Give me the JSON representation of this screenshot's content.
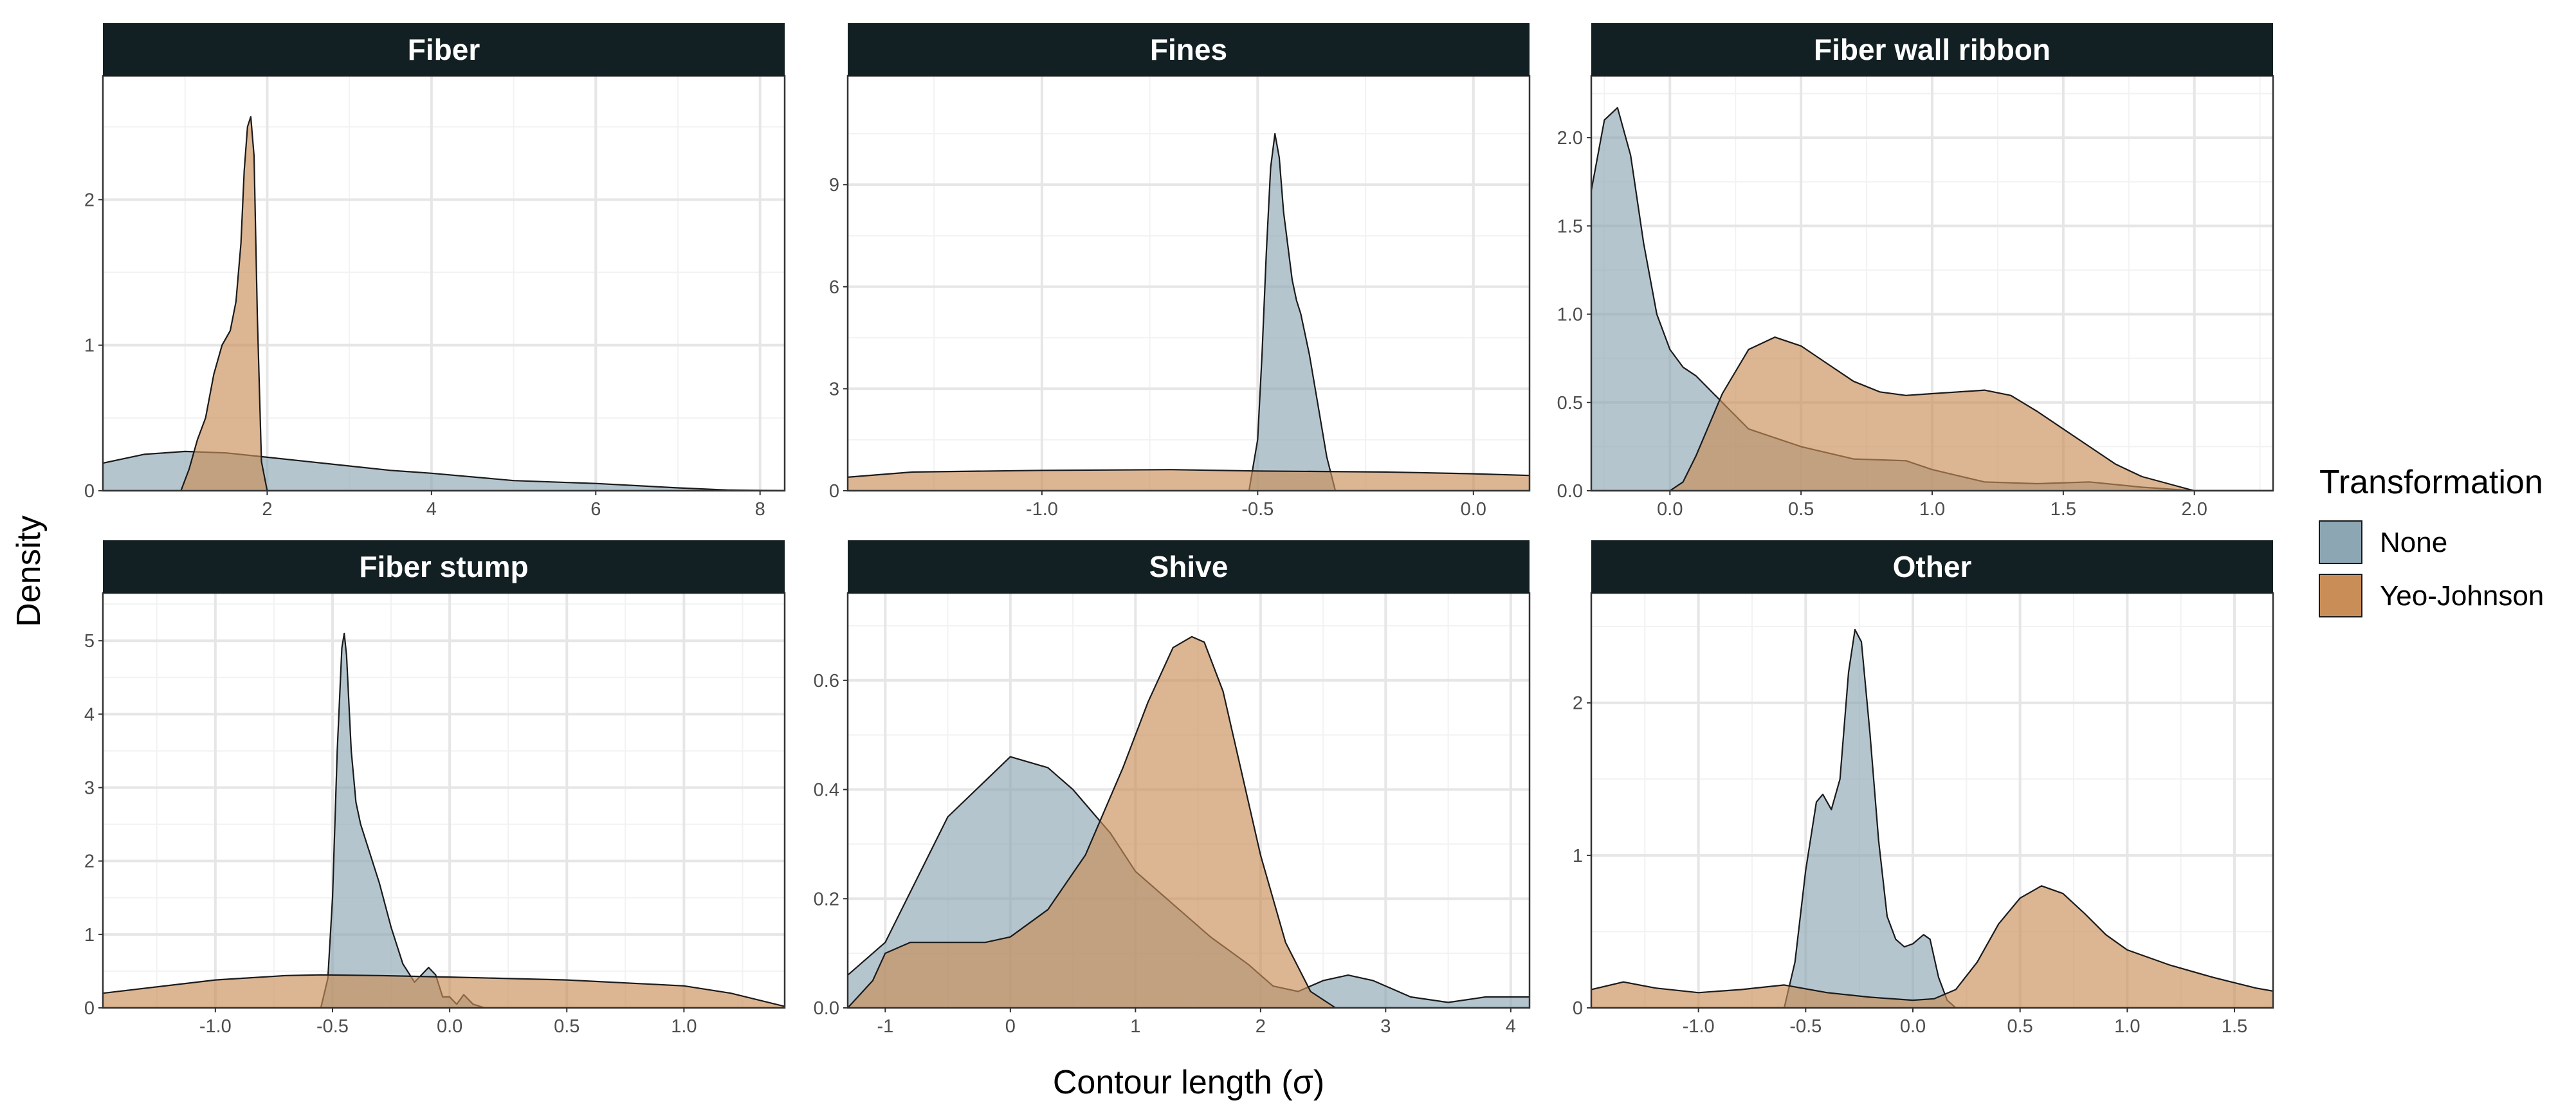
{
  "chart_data": {
    "type": "area",
    "title": "",
    "xlabel": "Contour length (σ)",
    "ylabel": "Density",
    "legend": {
      "title": "Transformation",
      "position": "right",
      "entries": [
        {
          "name": "None",
          "color": "#8CA6B4"
        },
        {
          "name": "Yeo-Johnson",
          "color": "#C98E58"
        }
      ]
    },
    "colors": {
      "None": "#8CA6B4",
      "Yeo-Johnson": "#C98E58",
      "strip": "#132023",
      "grid": "#ebebeb",
      "border": "#333333"
    },
    "panels": [
      {
        "title": "Fiber",
        "xlim": [
          0,
          8.3
        ],
        "ylim": [
          0,
          2.85
        ],
        "xticks": [
          2,
          4,
          6,
          8
        ],
        "xtick_labels": [
          "2",
          "4",
          "6",
          "8"
        ],
        "yticks": [
          0,
          1,
          2
        ],
        "ytick_labels": [
          "0",
          "1",
          "2"
        ],
        "series": [
          {
            "name": "None",
            "x": [
              0,
              0.5,
              1,
              1.5,
              2,
              2.5,
              3,
              3.5,
              4,
              5,
              6,
              7,
              7.6,
              8.3
            ],
            "y": [
              0.19,
              0.25,
              0.27,
              0.26,
              0.23,
              0.2,
              0.17,
              0.14,
              0.12,
              0.07,
              0.05,
              0.02,
              0.005,
              0
            ]
          },
          {
            "name": "Yeo-Johnson",
            "x": [
              0,
              0.95,
              1.05,
              1.15,
              1.25,
              1.35,
              1.45,
              1.55,
              1.62,
              1.68,
              1.72,
              1.76,
              1.8,
              1.84,
              1.88,
              1.93,
              2.0,
              8.3
            ],
            "y": [
              0,
              0,
              0.15,
              0.35,
              0.5,
              0.8,
              1.0,
              1.1,
              1.3,
              1.7,
              2.2,
              2.5,
              2.57,
              2.3,
              1.2,
              0.2,
              0,
              0
            ]
          }
        ]
      },
      {
        "title": "Fines",
        "xlim": [
          -1.45,
          0.13
        ],
        "ylim": [
          0,
          12.2
        ],
        "xticks": [
          -1.0,
          -0.5,
          0.0
        ],
        "xtick_labels": [
          "-1.0",
          "-0.5",
          "0.0"
        ],
        "yticks": [
          0,
          3,
          6,
          9
        ],
        "ytick_labels": [
          "0",
          "3",
          "6",
          "9"
        ],
        "series": [
          {
            "name": "None",
            "x": [
              -1.45,
              -0.52,
              -0.5,
              -0.49,
              -0.48,
              -0.47,
              -0.46,
              -0.45,
              -0.44,
              -0.43,
              -0.42,
              -0.41,
              -0.4,
              -0.38,
              -0.36,
              -0.34,
              -0.32,
              0.13
            ],
            "y": [
              0,
              0,
              1.5,
              4,
              7,
              9.5,
              10.5,
              9.8,
              8.2,
              7.2,
              6.2,
              5.6,
              5.2,
              4.0,
              2.5,
              1.0,
              0,
              0
            ]
          },
          {
            "name": "Yeo-Johnson",
            "x": [
              -1.45,
              -1.3,
              -1.0,
              -0.7,
              -0.5,
              -0.2,
              0.0,
              0.13
            ],
            "y": [
              0.4,
              0.55,
              0.6,
              0.62,
              0.58,
              0.55,
              0.5,
              0.45
            ]
          }
        ]
      },
      {
        "title": "Fiber wall ribbon",
        "xlim": [
          -0.3,
          2.3
        ],
        "ylim": [
          0,
          2.35
        ],
        "xticks": [
          0.0,
          0.5,
          1.0,
          1.5,
          2.0
        ],
        "xtick_labels": [
          "0.0",
          "0.5",
          "1.0",
          "1.5",
          "2.0"
        ],
        "yticks": [
          0.0,
          0.5,
          1.0,
          1.5,
          2.0
        ],
        "ytick_labels": [
          "0.0",
          "0.5",
          "1.0",
          "1.5",
          "2.0"
        ],
        "series": [
          {
            "name": "None",
            "x": [
              -0.3,
              -0.25,
              -0.2,
              -0.15,
              -0.1,
              -0.05,
              0.0,
              0.05,
              0.1,
              0.2,
              0.3,
              0.5,
              0.7,
              0.9,
              1.0,
              1.2,
              1.4,
              1.6,
              1.8,
              2.0,
              2.3
            ],
            "y": [
              1.7,
              2.1,
              2.17,
              1.9,
              1.4,
              1.0,
              0.8,
              0.7,
              0.65,
              0.5,
              0.35,
              0.25,
              0.18,
              0.17,
              0.12,
              0.05,
              0.04,
              0.05,
              0.02,
              0,
              0
            ]
          },
          {
            "name": "Yeo-Johnson",
            "x": [
              -0.3,
              0.0,
              0.05,
              0.1,
              0.2,
              0.3,
              0.4,
              0.5,
              0.6,
              0.7,
              0.8,
              0.9,
              1.0,
              1.1,
              1.2,
              1.3,
              1.4,
              1.5,
              1.6,
              1.7,
              1.8,
              1.9,
              2.0,
              2.3
            ],
            "y": [
              0,
              0,
              0.05,
              0.2,
              0.55,
              0.8,
              0.87,
              0.82,
              0.72,
              0.62,
              0.56,
              0.54,
              0.55,
              0.56,
              0.57,
              0.54,
              0.45,
              0.35,
              0.25,
              0.15,
              0.08,
              0.04,
              0,
              0
            ]
          }
        ]
      },
      {
        "title": "Fiber stump",
        "xlim": [
          -1.48,
          1.43
        ],
        "ylim": [
          0,
          5.65
        ],
        "xticks": [
          -1.0,
          -0.5,
          0.0,
          0.5,
          1.0
        ],
        "xtick_labels": [
          "-1.0",
          "-0.5",
          "0.0",
          "0.5",
          "1.0"
        ],
        "yticks": [
          0,
          1,
          2,
          3,
          4,
          5
        ],
        "ytick_labels": [
          "0",
          "1",
          "2",
          "3",
          "4",
          "5"
        ],
        "series": [
          {
            "name": "None",
            "x": [
              -1.48,
              -0.55,
              -0.52,
              -0.5,
              -0.48,
              -0.46,
              -0.45,
              -0.44,
              -0.42,
              -0.4,
              -0.38,
              -0.35,
              -0.3,
              -0.25,
              -0.2,
              -0.15,
              -0.12,
              -0.09,
              -0.06,
              -0.03,
              0.0,
              0.03,
              0.06,
              0.1,
              0.15,
              1.43
            ],
            "y": [
              0,
              0,
              0.4,
              1.5,
              3.5,
              4.9,
              5.1,
              4.8,
              3.5,
              2.8,
              2.5,
              2.2,
              1.7,
              1.1,
              0.6,
              0.35,
              0.45,
              0.55,
              0.45,
              0.15,
              0.15,
              0.05,
              0.18,
              0.05,
              0,
              0
            ]
          },
          {
            "name": "Yeo-Johnson",
            "x": [
              -1.48,
              -1.0,
              -0.7,
              -0.55,
              -0.3,
              0.0,
              0.5,
              1.0,
              1.2,
              1.43
            ],
            "y": [
              0.2,
              0.38,
              0.44,
              0.45,
              0.44,
              0.42,
              0.38,
              0.3,
              0.2,
              0.02
            ]
          }
        ]
      },
      {
        "title": "Shive",
        "xlim": [
          -1.3,
          4.15
        ],
        "ylim": [
          0,
          0.76
        ],
        "xticks": [
          -1,
          0,
          1,
          2,
          3,
          4
        ],
        "xtick_labels": [
          "-1",
          "0",
          "1",
          "2",
          "3",
          "4"
        ],
        "yticks": [
          0.0,
          0.2,
          0.4,
          0.6
        ],
        "ytick_labels": [
          "0.0",
          "0.2",
          "0.4",
          "0.6"
        ],
        "series": [
          {
            "name": "None",
            "x": [
              -1.3,
              -1.0,
              -0.5,
              0.0,
              0.3,
              0.5,
              0.8,
              1.0,
              1.3,
              1.6,
              1.9,
              2.1,
              2.3,
              2.5,
              2.7,
              2.9,
              3.2,
              3.5,
              3.8,
              4.15
            ],
            "y": [
              0.06,
              0.12,
              0.35,
              0.46,
              0.44,
              0.4,
              0.32,
              0.25,
              0.19,
              0.13,
              0.08,
              0.04,
              0.03,
              0.05,
              0.06,
              0.05,
              0.02,
              0.01,
              0.02,
              0.02
            ]
          },
          {
            "name": "Yeo-Johnson",
            "x": [
              -1.3,
              -1.1,
              -1.0,
              -0.8,
              -0.5,
              -0.2,
              0.0,
              0.3,
              0.6,
              0.9,
              1.1,
              1.3,
              1.45,
              1.55,
              1.7,
              1.85,
              2.0,
              2.2,
              2.4,
              2.6,
              4.15
            ],
            "y": [
              0,
              0.05,
              0.1,
              0.12,
              0.12,
              0.12,
              0.13,
              0.18,
              0.28,
              0.44,
              0.56,
              0.66,
              0.68,
              0.67,
              0.58,
              0.43,
              0.28,
              0.12,
              0.03,
              0,
              0
            ]
          }
        ]
      },
      {
        "title": "Other",
        "xlim": [
          -1.5,
          1.68
        ],
        "ylim": [
          0,
          2.72
        ],
        "xticks": [
          -1.0,
          -0.5,
          0.0,
          0.5,
          1.0,
          1.5
        ],
        "xtick_labels": [
          "-1.0",
          "-0.5",
          "0.0",
          "0.5",
          "1.0",
          "1.5"
        ],
        "yticks": [
          0,
          1,
          2
        ],
        "ytick_labels": [
          "0",
          "1",
          "2"
        ],
        "series": [
          {
            "name": "None",
            "x": [
              -1.5,
              -0.6,
              -0.55,
              -0.5,
              -0.45,
              -0.42,
              -0.38,
              -0.34,
              -0.3,
              -0.27,
              -0.24,
              -0.2,
              -0.16,
              -0.12,
              -0.08,
              -0.04,
              0.0,
              0.05,
              0.08,
              0.12,
              0.16,
              0.2,
              1.68
            ],
            "y": [
              0,
              0,
              0.3,
              0.9,
              1.35,
              1.4,
              1.3,
              1.5,
              2.2,
              2.48,
              2.4,
              1.8,
              1.1,
              0.6,
              0.45,
              0.4,
              0.42,
              0.48,
              0.45,
              0.2,
              0.05,
              0,
              0
            ]
          },
          {
            "name": "Yeo-Johnson",
            "x": [
              -1.5,
              -1.35,
              -1.2,
              -1.0,
              -0.8,
              -0.6,
              -0.4,
              -0.2,
              0.0,
              0.1,
              0.2,
              0.3,
              0.4,
              0.5,
              0.6,
              0.7,
              0.8,
              0.9,
              1.0,
              1.2,
              1.4,
              1.6,
              1.68
            ],
            "y": [
              0.12,
              0.17,
              0.13,
              0.1,
              0.12,
              0.15,
              0.1,
              0.07,
              0.05,
              0.06,
              0.12,
              0.3,
              0.55,
              0.72,
              0.8,
              0.75,
              0.62,
              0.48,
              0.38,
              0.28,
              0.2,
              0.13,
              0.11
            ]
          }
        ]
      }
    ]
  }
}
